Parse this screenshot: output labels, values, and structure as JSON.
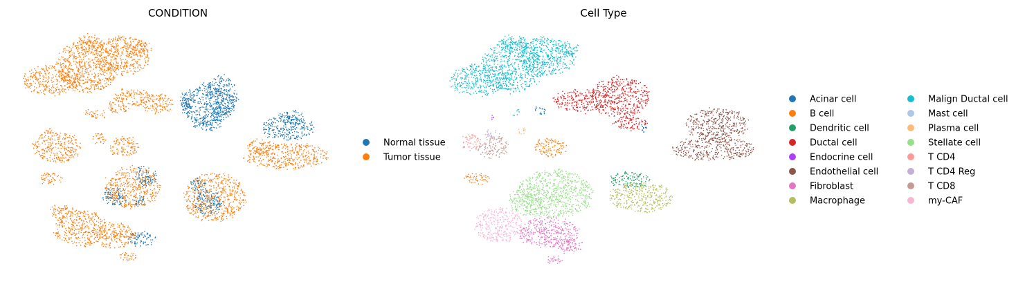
{
  "chart_data": [
    {
      "type": "scatter",
      "title": "CONDITION",
      "xlabel": "",
      "ylabel": "",
      "grid": false,
      "axes_visible": false,
      "legend_placement": "right",
      "series": [
        {
          "name": "Normal tissue",
          "color": "#1f77b4"
        },
        {
          "name": "Tumor tissue",
          "color": "#ff7f0e"
        }
      ]
    },
    {
      "type": "scatter",
      "title": "Cell Type",
      "xlabel": "",
      "ylabel": "",
      "grid": false,
      "axes_visible": false,
      "legend_placement": "right",
      "legend_columns": 2,
      "series": [
        {
          "name": "Acinar cell",
          "color": "#1f77b4"
        },
        {
          "name": "B cell",
          "color": "#ff7f0e"
        },
        {
          "name": "Dendritic cell",
          "color": "#279e68"
        },
        {
          "name": "Ductal cell",
          "color": "#d62728"
        },
        {
          "name": "Endocrine cell",
          "color": "#aa40fc"
        },
        {
          "name": "Endothelial cell",
          "color": "#8c564b"
        },
        {
          "name": "Fibroblast",
          "color": "#e377c2"
        },
        {
          "name": "Macrophage",
          "color": "#b5bd61"
        },
        {
          "name": "Malign Ductal cell",
          "color": "#17becf"
        },
        {
          "name": "Mast cell",
          "color": "#aec7e8"
        },
        {
          "name": "Plasma cell",
          "color": "#ffbb78"
        },
        {
          "name": "Stellate cell",
          "color": "#98df8a"
        },
        {
          "name": "T CD4",
          "color": "#ff9896"
        },
        {
          "name": "T CD4 Reg",
          "color": "#c5b0d5"
        },
        {
          "name": "T CD8",
          "color": "#c49c94"
        },
        {
          "name": "my-CAF",
          "color": "#f7b6d2"
        }
      ]
    }
  ]
}
